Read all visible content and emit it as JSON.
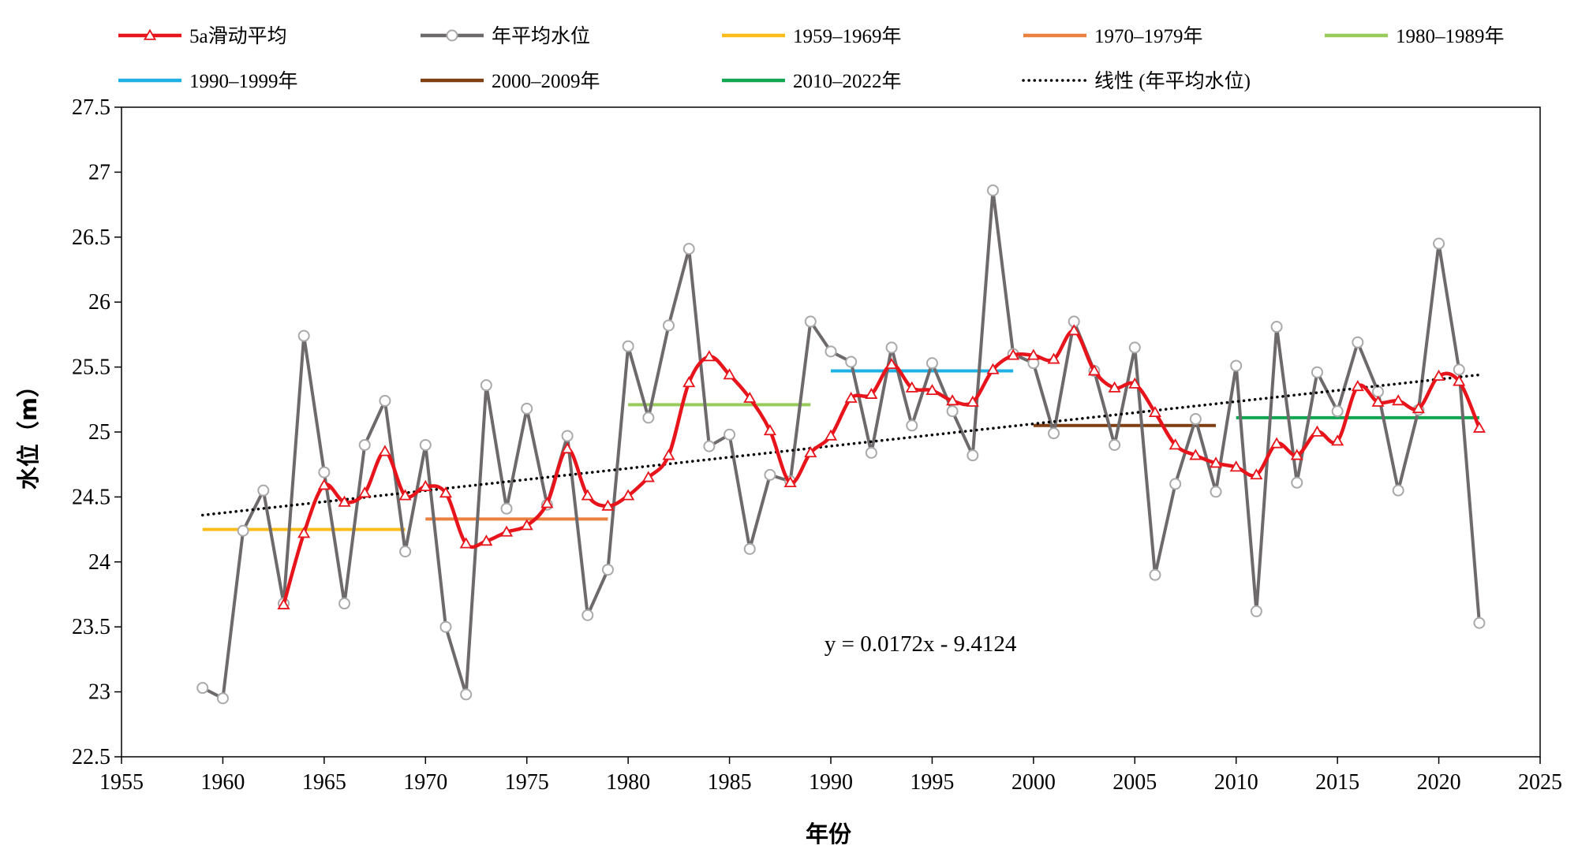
{
  "chart_data": {
    "type": "line",
    "title": "",
    "xlabel": "年份",
    "ylabel": "水位（m）",
    "xlim": [
      1955,
      2025
    ],
    "ylim": [
      22.5,
      27.5
    ],
    "x_ticks": [
      "1955",
      "1960",
      "1965",
      "1970",
      "1975",
      "1980",
      "1985",
      "1990",
      "1995",
      "2000",
      "2005",
      "2010",
      "2015",
      "2020",
      "2025"
    ],
    "y_ticks": [
      "22.5",
      "23",
      "23.5",
      "24",
      "24.5",
      "25",
      "25.5",
      "26",
      "26.5",
      "27",
      "27.5"
    ],
    "grid": false,
    "legend_position": "top",
    "series": [
      {
        "name": "年平均水位",
        "color": "#6e6a6b",
        "marker": "circle",
        "x": [
          1959,
          1960,
          1961,
          1962,
          1963,
          1964,
          1965,
          1966,
          1967,
          1968,
          1969,
          1970,
          1971,
          1972,
          1973,
          1974,
          1975,
          1976,
          1977,
          1978,
          1979,
          1980,
          1981,
          1982,
          1983,
          1984,
          1985,
          1986,
          1987,
          1988,
          1989,
          1990,
          1991,
          1992,
          1993,
          1994,
          1995,
          1996,
          1997,
          1998,
          1999,
          2000,
          2001,
          2002,
          2003,
          2004,
          2005,
          2006,
          2007,
          2008,
          2009,
          2010,
          2011,
          2012,
          2013,
          2014,
          2015,
          2016,
          2017,
          2018,
          2019,
          2020,
          2021,
          2022
        ],
        "values": [
          23.03,
          22.95,
          24.24,
          24.55,
          23.68,
          25.74,
          24.69,
          23.68,
          24.9,
          25.24,
          24.08,
          24.9,
          23.5,
          22.98,
          25.36,
          24.41,
          25.18,
          24.44,
          24.97,
          23.59,
          23.94,
          25.66,
          25.11,
          25.82,
          26.41,
          24.89,
          24.98,
          24.1,
          24.67,
          24.62,
          25.85,
          25.62,
          25.54,
          24.84,
          25.65,
          25.05,
          25.53,
          25.16,
          24.82,
          26.86,
          25.6,
          25.53,
          24.99,
          25.85,
          25.47,
          24.9,
          25.65,
          23.9,
          24.6,
          25.1,
          24.54,
          25.51,
          23.62,
          25.81,
          24.61,
          25.46,
          25.16,
          25.69,
          25.31,
          24.55,
          25.17,
          26.45,
          25.48,
          23.53
        ]
      },
      {
        "name": "5a滑动平均",
        "color": "#e8141b",
        "marker": "triangle",
        "x": [
          1963,
          1964,
          1965,
          1966,
          1967,
          1968,
          1969,
          1970,
          1971,
          1972,
          1973,
          1974,
          1975,
          1976,
          1977,
          1978,
          1979,
          1980,
          1981,
          1982,
          1983,
          1984,
          1985,
          1986,
          1987,
          1988,
          1989,
          1990,
          1991,
          1992,
          1993,
          1994,
          1995,
          1996,
          1997,
          1998,
          1999,
          2000,
          2001,
          2002,
          2003,
          2004,
          2005,
          2006,
          2007,
          2008,
          2009,
          2010,
          2011,
          2012,
          2013,
          2014,
          2015,
          2016,
          2017,
          2018,
          2019,
          2020,
          2021,
          2022
        ],
        "values": [
          23.67,
          24.22,
          24.59,
          24.46,
          24.53,
          24.85,
          24.51,
          24.58,
          24.53,
          24.14,
          24.16,
          24.23,
          24.28,
          24.45,
          24.87,
          24.51,
          24.43,
          24.51,
          24.65,
          24.82,
          25.38,
          25.58,
          25.44,
          25.26,
          25.01,
          24.61,
          24.84,
          24.97,
          25.26,
          25.29,
          25.52,
          25.34,
          25.32,
          25.24,
          25.23,
          25.48,
          25.59,
          25.59,
          25.56,
          25.78,
          25.47,
          25.34,
          25.37,
          25.15,
          24.9,
          24.82,
          24.76,
          24.73,
          24.67,
          24.91,
          24.82,
          25.0,
          24.93,
          25.35,
          25.23,
          25.24,
          25.18,
          25.43,
          25.39,
          25.03
        ]
      },
      {
        "name": "1959–1969年",
        "color": "#fcbd1b",
        "x": [
          1959,
          1969
        ],
        "values": [
          24.25,
          24.25
        ]
      },
      {
        "name": "1970–1979年",
        "color": "#ea8140",
        "x": [
          1970,
          1979
        ],
        "values": [
          24.33,
          24.33
        ]
      },
      {
        "name": "1980–1989年",
        "color": "#98ca5c",
        "x": [
          1980,
          1989
        ],
        "values": [
          25.21,
          25.21
        ]
      },
      {
        "name": "1990–1999年",
        "color": "#1fb0e6",
        "x": [
          1990,
          1999
        ],
        "values": [
          25.47,
          25.47
        ]
      },
      {
        "name": "2000–2009年",
        "color": "#7f3f13",
        "x": [
          2000,
          2009
        ],
        "values": [
          25.05,
          25.05
        ]
      },
      {
        "name": "2010–2022年",
        "color": "#13a652",
        "x": [
          2010,
          2022
        ],
        "values": [
          25.11,
          25.11
        ]
      },
      {
        "name": "线性 (年平均水位)",
        "color": "#000000",
        "dotted": true,
        "x": [
          1959,
          2022
        ],
        "values": [
          24.36,
          25.44
        ]
      }
    ],
    "annotations": [
      {
        "text": "y = 0.0172x - 9.4124",
        "x": 2000,
        "y": 23.3
      }
    ]
  }
}
